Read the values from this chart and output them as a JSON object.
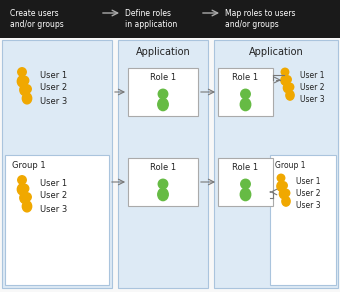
{
  "bg_color": "#f0f4f8",
  "panel_color": "#ddeaf5",
  "panel_border": "#aac4dd",
  "white": "#ffffff",
  "arrow_color": "#555555",
  "text_color": "#222222",
  "label_color": "#444444",
  "user_gold": "#f0a800",
  "user_green": "#66bb44",
  "header_bg": "#222222",
  "header_text": "#ffffff",
  "steps": [
    "Create users\nand/or groups",
    "Define roles\nin application",
    "Map roles to users\nand/or groups"
  ],
  "app_label": "Application",
  "group_label": "Group 1",
  "role_label": "Role 1",
  "user_labels": [
    "User 1",
    "User 2",
    "User 3"
  ]
}
